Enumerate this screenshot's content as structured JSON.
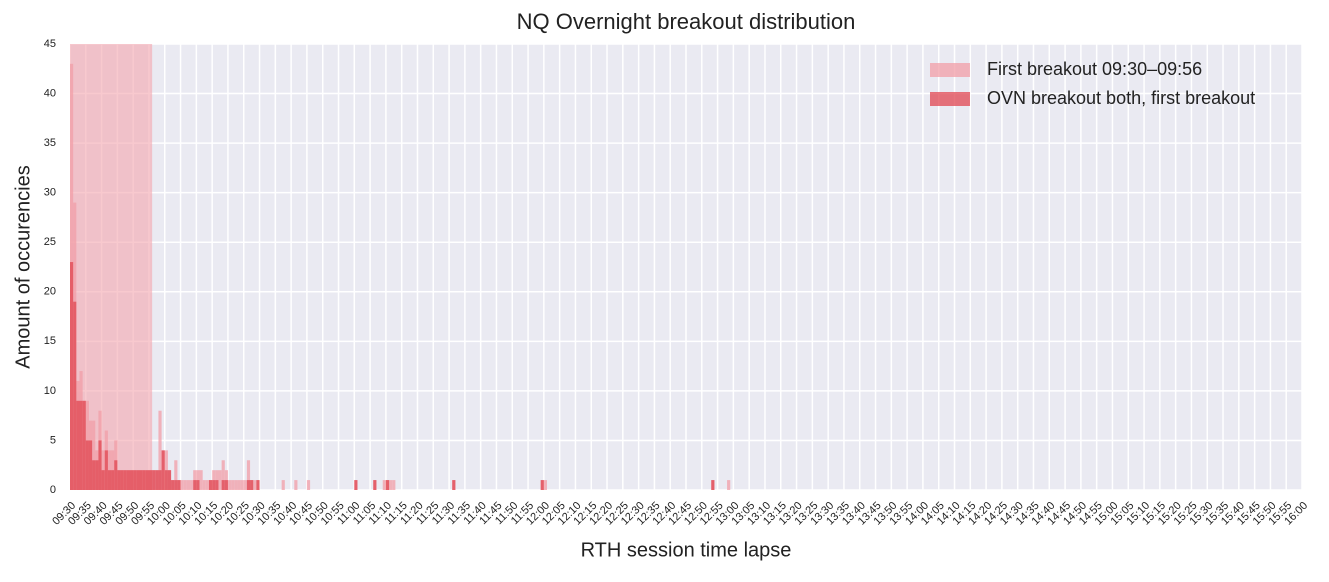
{
  "chart_data": {
    "type": "bar",
    "title": "NQ Overnight breakout distribution",
    "x_label": "RTH session time lapse",
    "y_label": "Amount of occurencies",
    "xlim": [
      0,
      390
    ],
    "ylim": [
      0,
      45
    ],
    "yticks": [
      0,
      5,
      10,
      15,
      20,
      25,
      30,
      35,
      40,
      45
    ],
    "xticks": [
      {
        "value": 0,
        "label": "09:30"
      },
      {
        "value": 5,
        "label": "09:35"
      },
      {
        "value": 10,
        "label": "09:40"
      },
      {
        "value": 15,
        "label": "09:45"
      },
      {
        "value": 20,
        "label": "09:50"
      },
      {
        "value": 25,
        "label": "09:55"
      },
      {
        "value": 30,
        "label": "10:00"
      },
      {
        "value": 35,
        "label": "10:05"
      },
      {
        "value": 40,
        "label": "10:10"
      },
      {
        "value": 45,
        "label": "10:15"
      },
      {
        "value": 50,
        "label": "10:20"
      },
      {
        "value": 55,
        "label": "10:25"
      },
      {
        "value": 60,
        "label": "10:30"
      },
      {
        "value": 65,
        "label": "10:35"
      },
      {
        "value": 70,
        "label": "10:40"
      },
      {
        "value": 75,
        "label": "10:45"
      },
      {
        "value": 80,
        "label": "10:50"
      },
      {
        "value": 85,
        "label": "10:55"
      },
      {
        "value": 90,
        "label": "11:00"
      },
      {
        "value": 95,
        "label": "11:05"
      },
      {
        "value": 100,
        "label": "11:10"
      },
      {
        "value": 105,
        "label": "11:15"
      },
      {
        "value": 110,
        "label": "11:20"
      },
      {
        "value": 115,
        "label": "11:25"
      },
      {
        "value": 120,
        "label": "11:30"
      },
      {
        "value": 125,
        "label": "11:35"
      },
      {
        "value": 130,
        "label": "11:40"
      },
      {
        "value": 135,
        "label": "11:45"
      },
      {
        "value": 140,
        "label": "11:50"
      },
      {
        "value": 145,
        "label": "11:55"
      },
      {
        "value": 150,
        "label": "12:00"
      },
      {
        "value": 155,
        "label": "12:05"
      },
      {
        "value": 160,
        "label": "12:10"
      },
      {
        "value": 165,
        "label": "12:15"
      },
      {
        "value": 170,
        "label": "12:20"
      },
      {
        "value": 175,
        "label": "12:25"
      },
      {
        "value": 180,
        "label": "12:30"
      },
      {
        "value": 185,
        "label": "12:35"
      },
      {
        "value": 190,
        "label": "12:40"
      },
      {
        "value": 195,
        "label": "12:45"
      },
      {
        "value": 200,
        "label": "12:50"
      },
      {
        "value": 205,
        "label": "12:55"
      },
      {
        "value": 210,
        "label": "13:00"
      },
      {
        "value": 215,
        "label": "13:05"
      },
      {
        "value": 220,
        "label": "13:10"
      },
      {
        "value": 225,
        "label": "13:15"
      },
      {
        "value": 230,
        "label": "13:20"
      },
      {
        "value": 235,
        "label": "13:25"
      },
      {
        "value": 240,
        "label": "13:30"
      },
      {
        "value": 245,
        "label": "13:35"
      },
      {
        "value": 250,
        "label": "13:40"
      },
      {
        "value": 255,
        "label": "13:45"
      },
      {
        "value": 260,
        "label": "13:50"
      },
      {
        "value": 265,
        "label": "13:55"
      },
      {
        "value": 270,
        "label": "14:00"
      },
      {
        "value": 275,
        "label": "14:05"
      },
      {
        "value": 280,
        "label": "14:10"
      },
      {
        "value": 285,
        "label": "14:15"
      },
      {
        "value": 290,
        "label": "14:20"
      },
      {
        "value": 295,
        "label": "14:25"
      },
      {
        "value": 300,
        "label": "14:30"
      },
      {
        "value": 305,
        "label": "14:35"
      },
      {
        "value": 310,
        "label": "14:40"
      },
      {
        "value": 315,
        "label": "14:45"
      },
      {
        "value": 320,
        "label": "14:50"
      },
      {
        "value": 325,
        "label": "14:55"
      },
      {
        "value": 330,
        "label": "15:00"
      },
      {
        "value": 335,
        "label": "15:05"
      },
      {
        "value": 340,
        "label": "15:10"
      },
      {
        "value": 345,
        "label": "15:15"
      },
      {
        "value": 350,
        "label": "15:20"
      },
      {
        "value": 355,
        "label": "15:25"
      },
      {
        "value": 360,
        "label": "15:30"
      },
      {
        "value": 365,
        "label": "15:35"
      },
      {
        "value": 370,
        "label": "15:40"
      },
      {
        "value": 375,
        "label": "15:45"
      },
      {
        "value": 380,
        "label": "15:50"
      },
      {
        "value": 385,
        "label": "15:55"
      },
      {
        "value": 390,
        "label": "16:00"
      }
    ],
    "span": [
      0,
      26
    ],
    "span_color": "#f4a5ad",
    "grid": true,
    "legend": "upper right",
    "series": [
      {
        "name": "First breakout 09:30–09:56",
        "color": "#f19ea7",
        "x": [
          0,
          1,
          2,
          3,
          4,
          5,
          6,
          7,
          8,
          9,
          10,
          11,
          12,
          13,
          14,
          15,
          16,
          17,
          18,
          19,
          20,
          21,
          22,
          23,
          24,
          25,
          26,
          27,
          28,
          29,
          30,
          31,
          32,
          33,
          34,
          35,
          36,
          37,
          38,
          39,
          40,
          41,
          42,
          43,
          44,
          45,
          46,
          47,
          48,
          49,
          50,
          51,
          52,
          53,
          54,
          55,
          56,
          57,
          58,
          59,
          67,
          71,
          75,
          90,
          96,
          99,
          100,
          101,
          102,
          121,
          149,
          150,
          203,
          208
        ],
        "values": [
          43,
          29,
          11,
          12,
          9,
          9,
          7,
          7,
          4,
          8,
          4,
          6,
          4,
          4,
          5,
          2,
          2,
          2,
          2,
          2,
          2,
          2,
          2,
          2,
          2,
          2,
          2,
          2,
          8,
          4,
          4,
          2,
          1,
          3,
          1,
          1,
          1,
          1,
          1,
          2,
          2,
          2,
          1,
          1,
          1,
          2,
          2,
          2,
          3,
          2,
          1,
          1,
          1,
          1,
          1,
          1,
          3,
          1,
          1,
          1,
          1,
          1,
          1,
          1,
          1,
          1,
          1,
          1,
          1,
          1,
          1,
          1,
          1,
          1
        ]
      },
      {
        "name": "OVN breakout both, first breakout",
        "color": "#e04650",
        "x": [
          0,
          1,
          2,
          3,
          4,
          5,
          6,
          7,
          8,
          9,
          10,
          11,
          12,
          13,
          14,
          15,
          16,
          17,
          18,
          19,
          20,
          21,
          22,
          23,
          24,
          25,
          26,
          27,
          28,
          29,
          30,
          31,
          32,
          33,
          34,
          39,
          40,
          44,
          45,
          46,
          48,
          49,
          56,
          57,
          59,
          90,
          96,
          100,
          121,
          149,
          203
        ],
        "values": [
          23,
          19,
          9,
          9,
          9,
          5,
          5,
          3,
          3,
          5,
          2,
          4,
          2,
          2,
          3,
          2,
          2,
          2,
          2,
          2,
          2,
          2,
          2,
          2,
          2,
          2,
          2,
          2,
          2,
          4,
          2,
          2,
          1,
          1,
          1,
          1,
          1,
          1,
          1,
          1,
          1,
          1,
          1,
          1,
          1,
          1,
          1,
          1,
          1,
          1,
          1
        ]
      }
    ]
  }
}
